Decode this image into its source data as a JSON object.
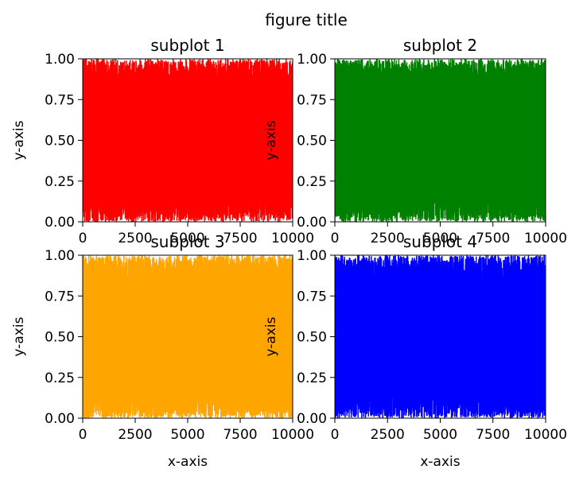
{
  "figure": {
    "title": "figure title"
  },
  "chart_data": [
    {
      "type": "line",
      "title": "subplot 1",
      "xlabel": "",
      "ylabel": "y-axis",
      "color": "#ff0000",
      "xlim": [
        0,
        10000
      ],
      "ylim": [
        0,
        1
      ],
      "xticks": [
        "0",
        "2500",
        "5000",
        "7500",
        "10000"
      ],
      "yticks": [
        "0.00",
        "0.25",
        "0.50",
        "0.75",
        "1.00"
      ],
      "grid": false,
      "n_points": 10000,
      "y_distribution": "uniform random in [0, 1]"
    },
    {
      "type": "line",
      "title": "subplot 2",
      "xlabel": "",
      "ylabel": "y-axis",
      "color": "#008000",
      "xlim": [
        0,
        10000
      ],
      "ylim": [
        0,
        1
      ],
      "xticks": [
        "0",
        "2500",
        "5000",
        "7500",
        "10000"
      ],
      "yticks": [
        "0.00",
        "0.25",
        "0.50",
        "0.75",
        "1.00"
      ],
      "grid": false,
      "n_points": 10000,
      "y_distribution": "uniform random in [0, 1]"
    },
    {
      "type": "line",
      "title": "subplot 3",
      "xlabel": "x-axis",
      "ylabel": "y-axis",
      "color": "#ffa500",
      "xlim": [
        0,
        10000
      ],
      "ylim": [
        0,
        1
      ],
      "xticks": [
        "0",
        "2500",
        "5000",
        "7500",
        "10000"
      ],
      "yticks": [
        "0.00",
        "0.25",
        "0.50",
        "0.75",
        "1.00"
      ],
      "grid": false,
      "n_points": 10000,
      "y_distribution": "uniform random in [0, 1]"
    },
    {
      "type": "line",
      "title": "subplot 4",
      "xlabel": "x-axis",
      "ylabel": "y-axis",
      "color": "#0000ff",
      "xlim": [
        0,
        10000
      ],
      "ylim": [
        0,
        1
      ],
      "xticks": [
        "0",
        "2500",
        "5000",
        "7500",
        "10000"
      ],
      "yticks": [
        "0.00",
        "0.25",
        "0.50",
        "0.75",
        "1.00"
      ],
      "grid": false,
      "n_points": 10000,
      "y_distribution": "uniform random in [0, 1]"
    }
  ]
}
